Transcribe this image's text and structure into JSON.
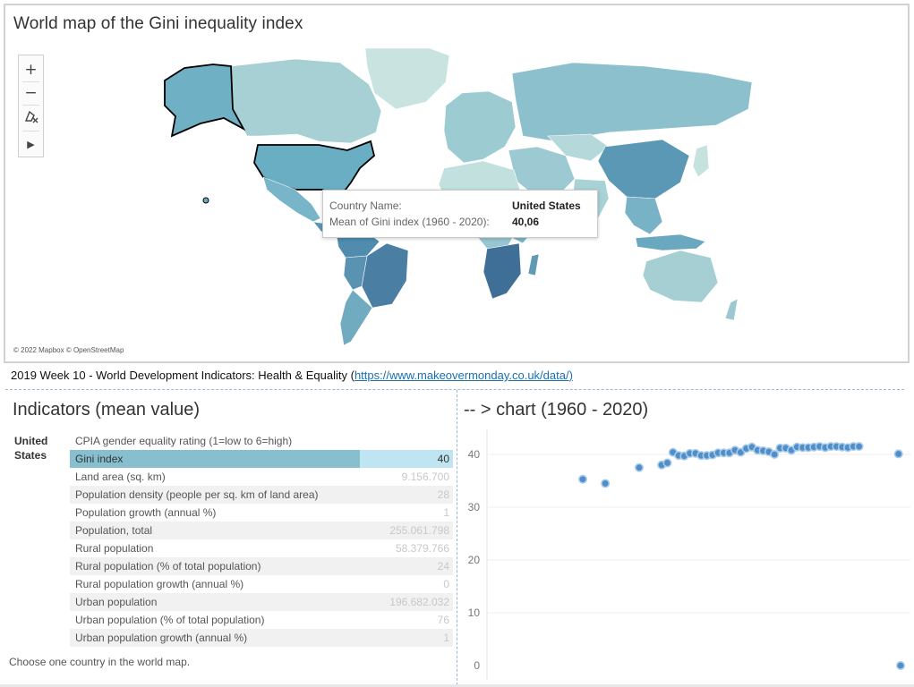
{
  "map": {
    "title": "World map of the Gini inequality index",
    "controls": {
      "zoom_in": "+",
      "zoom_out": "−",
      "select_tool": "lasso-select-icon",
      "expand": "▶"
    },
    "attribution": "© 2022 Mapbox © OpenStreetMap",
    "tooltip": {
      "country_label": "Country Name:",
      "country_value": "United States",
      "metric_label": "Mean of Gini index (1960 - 2020):",
      "metric_value": "40,06"
    },
    "colors": {
      "ocean": "#ffffff",
      "low": "#c9e4e0",
      "mid": "#8cc0cc",
      "high": "#4a7ea3",
      "highlight_border": "#000000"
    }
  },
  "source": {
    "text": "2019 Week 10 - World Development Indicators: Health & Equality (",
    "link": "https://www.makeovermonday.co.uk/data/",
    "close": ")"
  },
  "indicators": {
    "title": "Indicators (mean value)",
    "country": "United States",
    "rows": [
      {
        "name": "CPIA gender equality rating (1=low to 6=high)",
        "value": ""
      },
      {
        "name": "Gini index",
        "value": "40"
      },
      {
        "name": "Land area (sq. km)",
        "value": "9.156.700"
      },
      {
        "name": "Population density (people per sq. km of land area)",
        "value": "28"
      },
      {
        "name": "Population growth (annual %)",
        "value": "1"
      },
      {
        "name": "Population, total",
        "value": "255.061.798"
      },
      {
        "name": "Rural population",
        "value": "58.379.766"
      },
      {
        "name": "Rural population (% of total population)",
        "value": "24"
      },
      {
        "name": "Rural population growth (annual %)",
        "value": "0"
      },
      {
        "name": "Urban population",
        "value": "196.682.032"
      },
      {
        "name": "Urban population (% of total population)",
        "value": "76"
      },
      {
        "name": "Urban population growth (annual %)",
        "value": "1"
      }
    ],
    "selected_fraction": 0.757,
    "footnote": "Choose one country in the world map."
  },
  "chart": {
    "title": "-- > chart (1960 - 2020)"
  },
  "chart_data": {
    "type": "scatter",
    "title": "-- > chart (1960 - 2020)",
    "xlabel": "",
    "ylabel": "",
    "yticks": [
      "40",
      "30",
      "20",
      "10",
      "0"
    ],
    "ylim": [
      0,
      42
    ],
    "xlim": [
      1960,
      2020
    ],
    "grid": true,
    "color": "#4e8fc9",
    "x": [
      1963,
      1967,
      1973,
      1977,
      1978,
      1979,
      1980,
      1981,
      1982,
      1983,
      1984,
      1985,
      1986,
      1987,
      1988,
      1989,
      1990,
      1991,
      1992,
      1993,
      1994,
      1995,
      1996,
      1997,
      1998,
      1999,
      2000,
      2001,
      2002,
      2003,
      2004,
      2005,
      2006,
      2007,
      2008,
      2009,
      2010,
      2011,
      2012,
      2019,
      2020
    ],
    "y": [
      35.3,
      34.5,
      37.5,
      38.0,
      38.4,
      40.4,
      39.8,
      39.7,
      40.2,
      40.2,
      39.8,
      39.8,
      39.9,
      40.3,
      40.3,
      40.3,
      40.8,
      40.4,
      41.1,
      41.4,
      40.8,
      40.7,
      40.5,
      40.0,
      41.2,
      41.2,
      40.8,
      41.4,
      41.3,
      41.3,
      41.4,
      41.5,
      41.3,
      41.5,
      41.5,
      41.4,
      41.3,
      41.5,
      41.5,
      40.1,
      0.0
    ]
  }
}
